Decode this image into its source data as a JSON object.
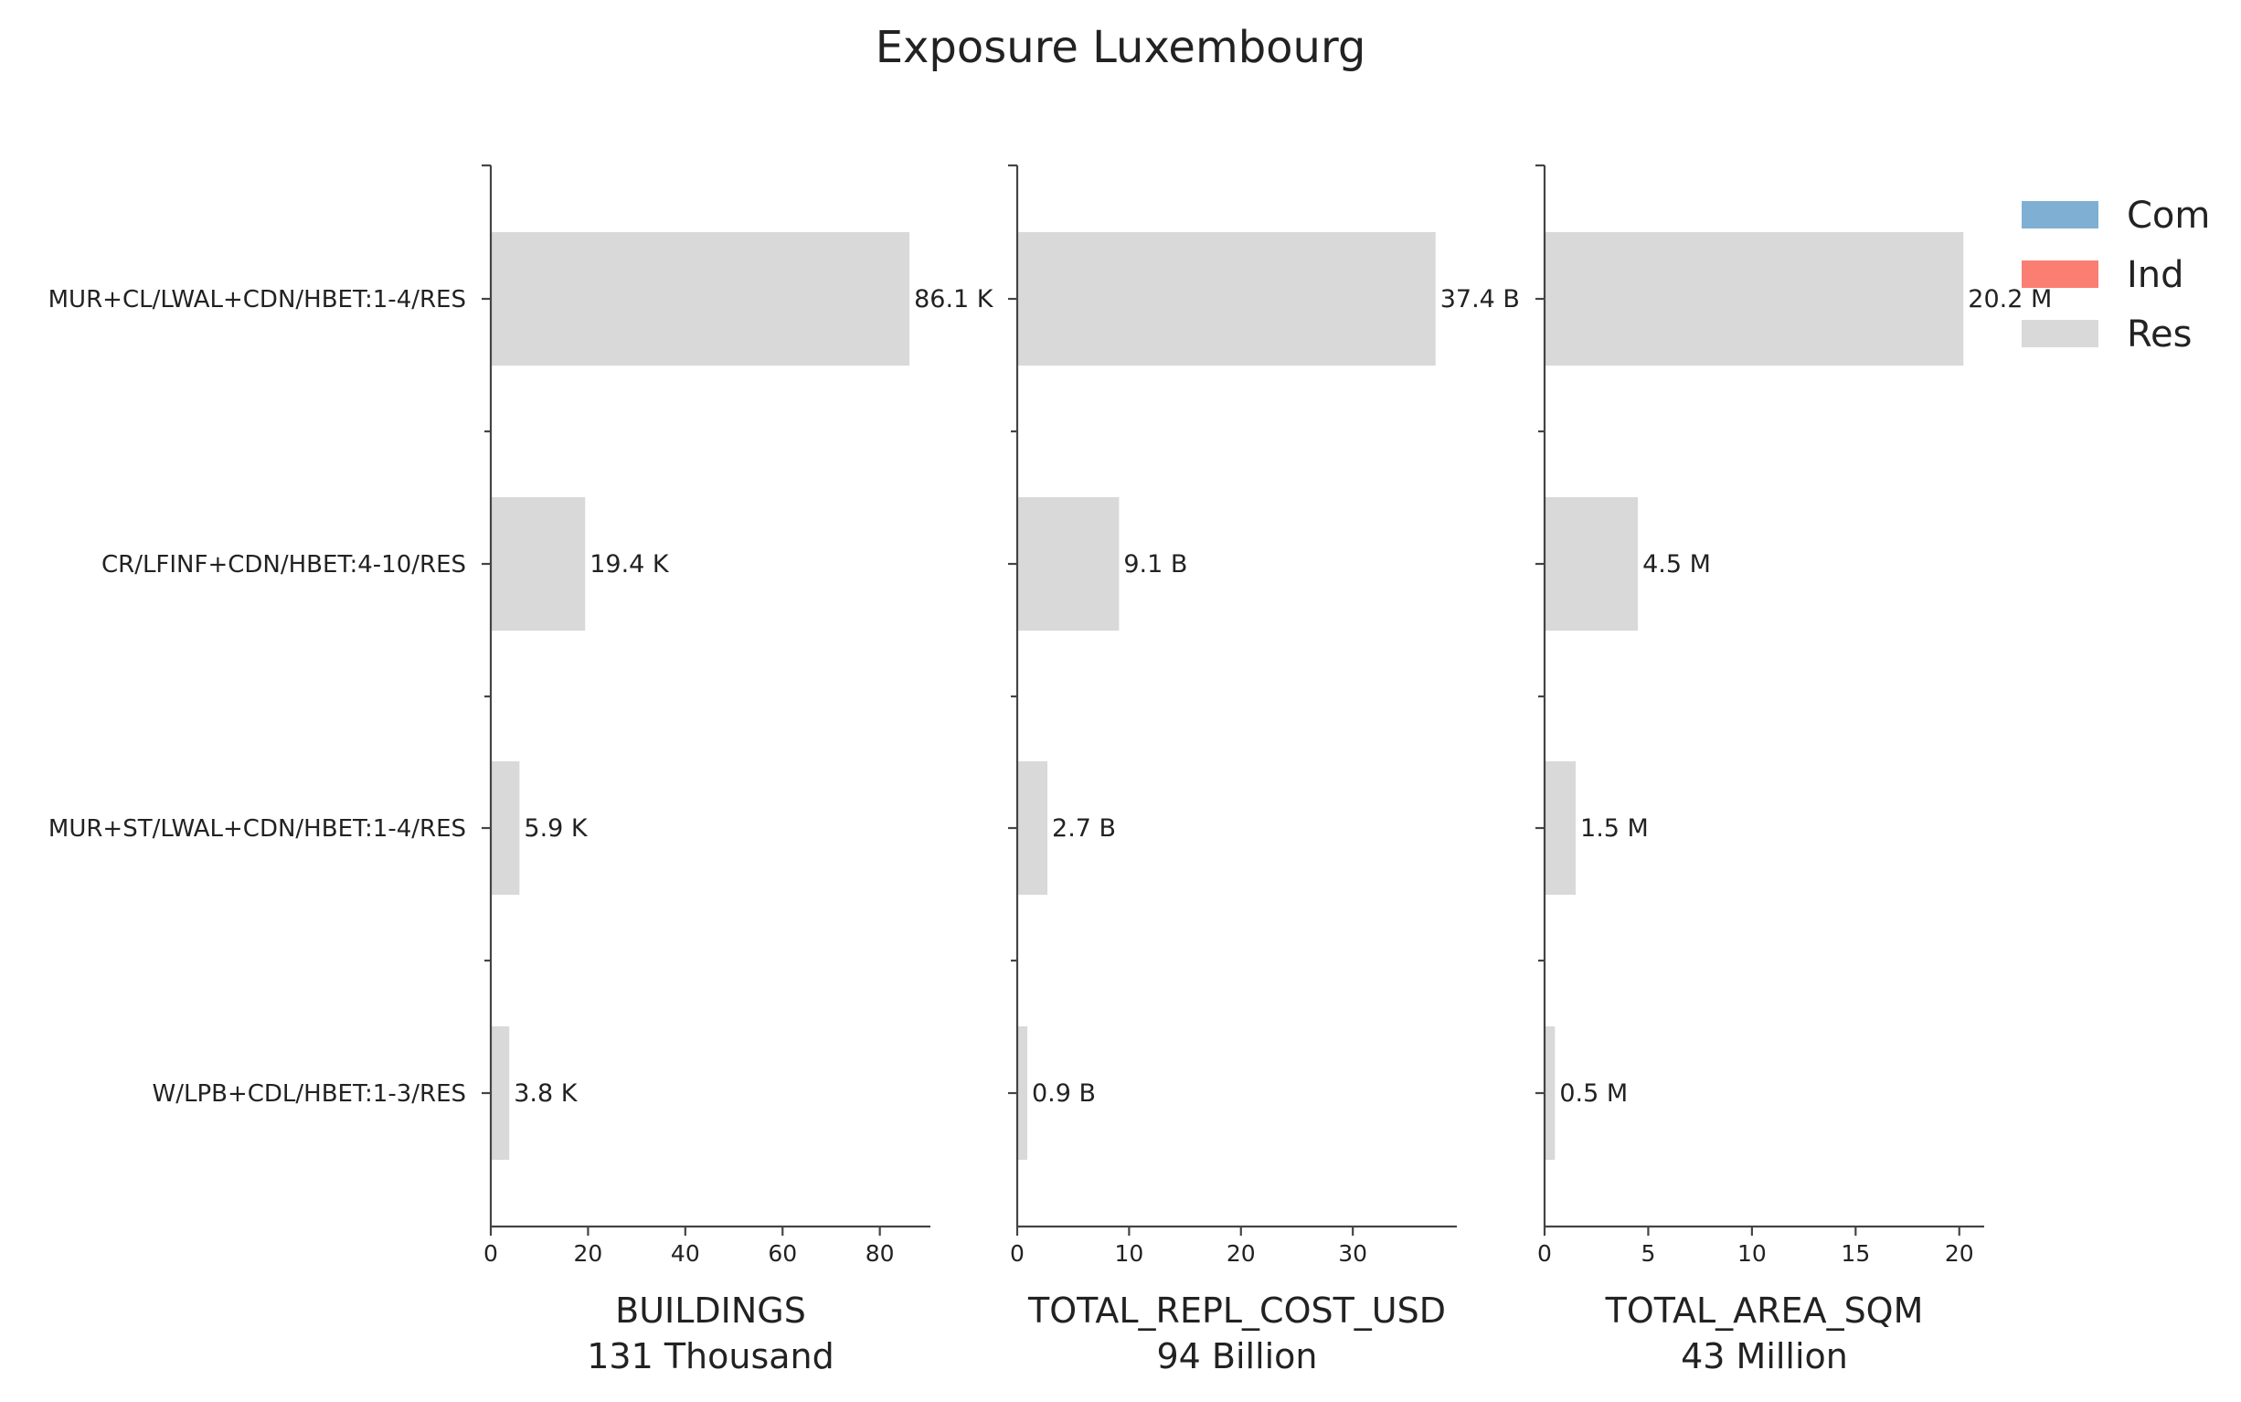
{
  "chart_data": {
    "type": "bar",
    "orientation": "horizontal",
    "title": "Exposure Luxembourg",
    "categories": [
      "MUR+CL/LWAL+CDN/HBET:1-4/RES",
      "CR/LFINF+CDN/HBET:4-10/RES",
      "MUR+ST/LWAL+CDN/HBET:1-4/RES",
      "W/LPB+CDL/HBET:1-3/RES"
    ],
    "legend": {
      "placement": "top-right",
      "entries": [
        {
          "name": "Com",
          "color": "#7fb0d4"
        },
        {
          "name": "Ind",
          "color": "#fa7f72"
        },
        {
          "name": "Res",
          "color": "#d9d9d9"
        }
      ]
    },
    "panels": [
      {
        "xlabel": "BUILDINGS",
        "total": "131 Thousand",
        "xlim": [
          0,
          90.4
        ],
        "ticks": [
          0,
          20,
          40,
          60,
          80
        ],
        "values": [
          86.1,
          19.4,
          5.9,
          3.8
        ],
        "labels": [
          "86.1 K",
          "19.4 K",
          "5.9 K",
          "3.8 K"
        ]
      },
      {
        "xlabel": "TOTAL_REPL_COST_USD",
        "total": "94 Billion",
        "xlim": [
          0,
          39.3
        ],
        "ticks": [
          0,
          10,
          20,
          30
        ],
        "values": [
          37.4,
          9.1,
          2.7,
          0.9
        ],
        "labels": [
          "37.4 B",
          "9.1 B",
          "2.7 B",
          "0.9 B"
        ]
      },
      {
        "xlabel": "TOTAL_AREA_SQM",
        "total": "43 Million",
        "xlim": [
          0,
          21.2
        ],
        "ticks": [
          0,
          5,
          10,
          15,
          20
        ],
        "values": [
          20.2,
          4.5,
          1.5,
          0.5
        ],
        "labels": [
          "20.2 M",
          "4.5 M",
          "1.5 M",
          "0.5 M"
        ]
      }
    ],
    "bar_color": "#d9d9d9"
  }
}
